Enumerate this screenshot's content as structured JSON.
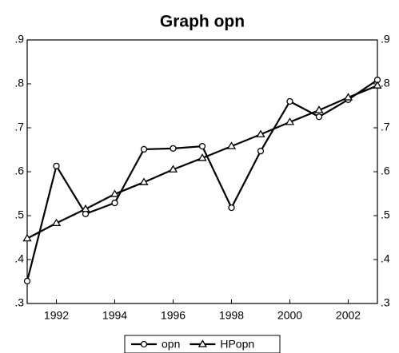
{
  "chart_data": {
    "type": "line",
    "title": "Graph opn",
    "x": [
      1991,
      1992,
      1993,
      1994,
      1995,
      1996,
      1997,
      1998,
      1999,
      2000,
      2001,
      2002,
      2003
    ],
    "series": [
      {
        "name": "opn",
        "color": "#000000",
        "marker": "circle",
        "values": [
          0.351,
          0.613,
          0.504,
          0.529,
          0.651,
          0.653,
          0.658,
          0.518,
          0.647,
          0.76,
          0.725,
          0.764,
          0.809
        ]
      },
      {
        "name": "HPopn",
        "color": "#000000",
        "marker": "triangle",
        "values": [
          0.448,
          0.483,
          0.515,
          0.549,
          0.576,
          0.605,
          0.631,
          0.658,
          0.685,
          0.713,
          0.74,
          0.769,
          0.796
        ]
      }
    ],
    "xlim": [
      1991,
      2003
    ],
    "xticks": [
      1992,
      1994,
      1996,
      1998,
      2000,
      2002
    ],
    "ylim": [
      0.3,
      0.9
    ],
    "yticks": [
      {
        "value": 0.3,
        "label": ".3"
      },
      {
        "value": 0.4,
        "label": ".4"
      },
      {
        "value": 0.5,
        "label": ".5"
      },
      {
        "value": 0.6,
        "label": ".6"
      },
      {
        "value": 0.7,
        "label": ".7"
      },
      {
        "value": 0.8,
        "label": ".8"
      },
      {
        "value": 0.9,
        "label": ".9"
      }
    ],
    "grid": false,
    "legend": "bottom"
  }
}
